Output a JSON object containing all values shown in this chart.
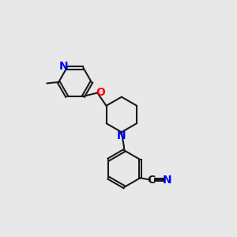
{
  "background_color": "#e8e8e8",
  "bond_color": "#1a1a1a",
  "n_color": "#0000ff",
  "o_color": "#ff0000",
  "lw": 1.5,
  "fs": 9.5,
  "fig_size": [
    3.0,
    3.0
  ],
  "dpi": 100,
  "xlim": [
    0,
    10
  ],
  "ylim": [
    0,
    10
  ]
}
